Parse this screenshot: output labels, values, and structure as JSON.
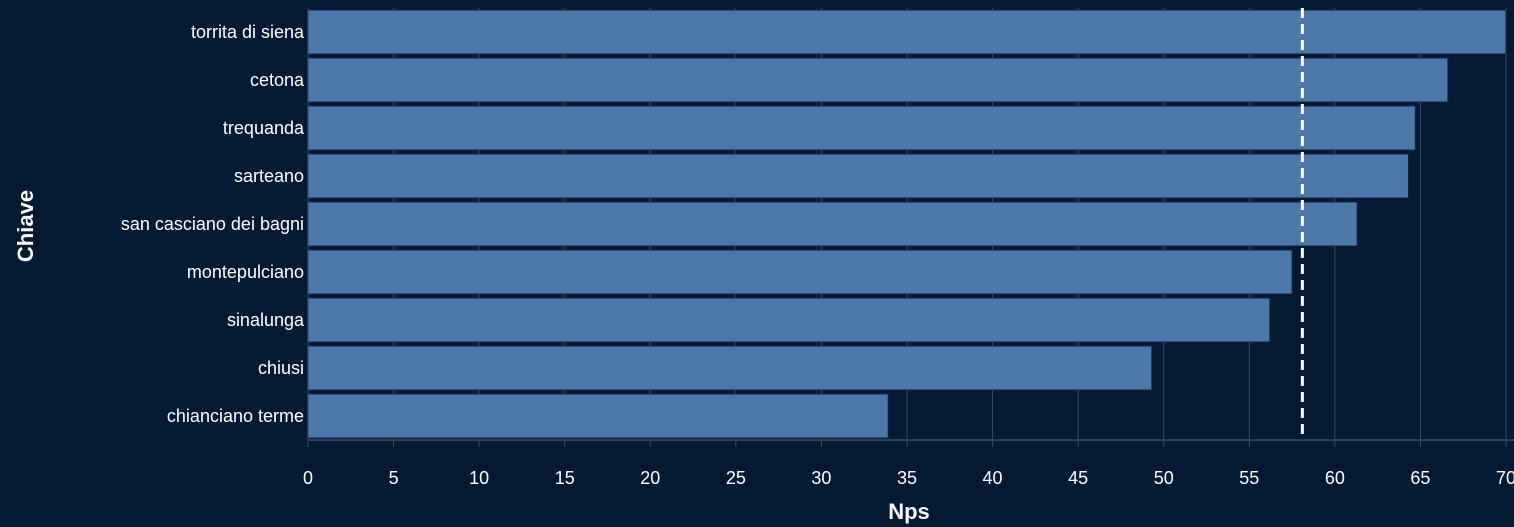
{
  "chart_data": {
    "type": "bar",
    "orientation": "horizontal",
    "categories": [
      "torrita di siena",
      "cetona",
      "trequanda",
      "sarteano",
      "san casciano dei bagni",
      "montepulciano",
      "sinalunga",
      "chiusi",
      "chianciano terme"
    ],
    "values": [
      70.0,
      66.6,
      64.7,
      64.3,
      61.3,
      57.5,
      56.2,
      49.3,
      33.9
    ],
    "reference_line": 58.1,
    "xlabel": "Nps",
    "ylabel": "Chiave",
    "xlim": [
      0,
      70
    ],
    "xticks": [
      0,
      5,
      10,
      15,
      20,
      25,
      30,
      35,
      40,
      45,
      50,
      55,
      60,
      65,
      70
    ],
    "grid": "vertical",
    "colors": {
      "background": "#041a33",
      "bar": "#4b78a8",
      "bar_edge": "#0e2747",
      "grid": "#3a4d66",
      "reference_line": "#ffffff",
      "text": "#ffffff"
    }
  }
}
